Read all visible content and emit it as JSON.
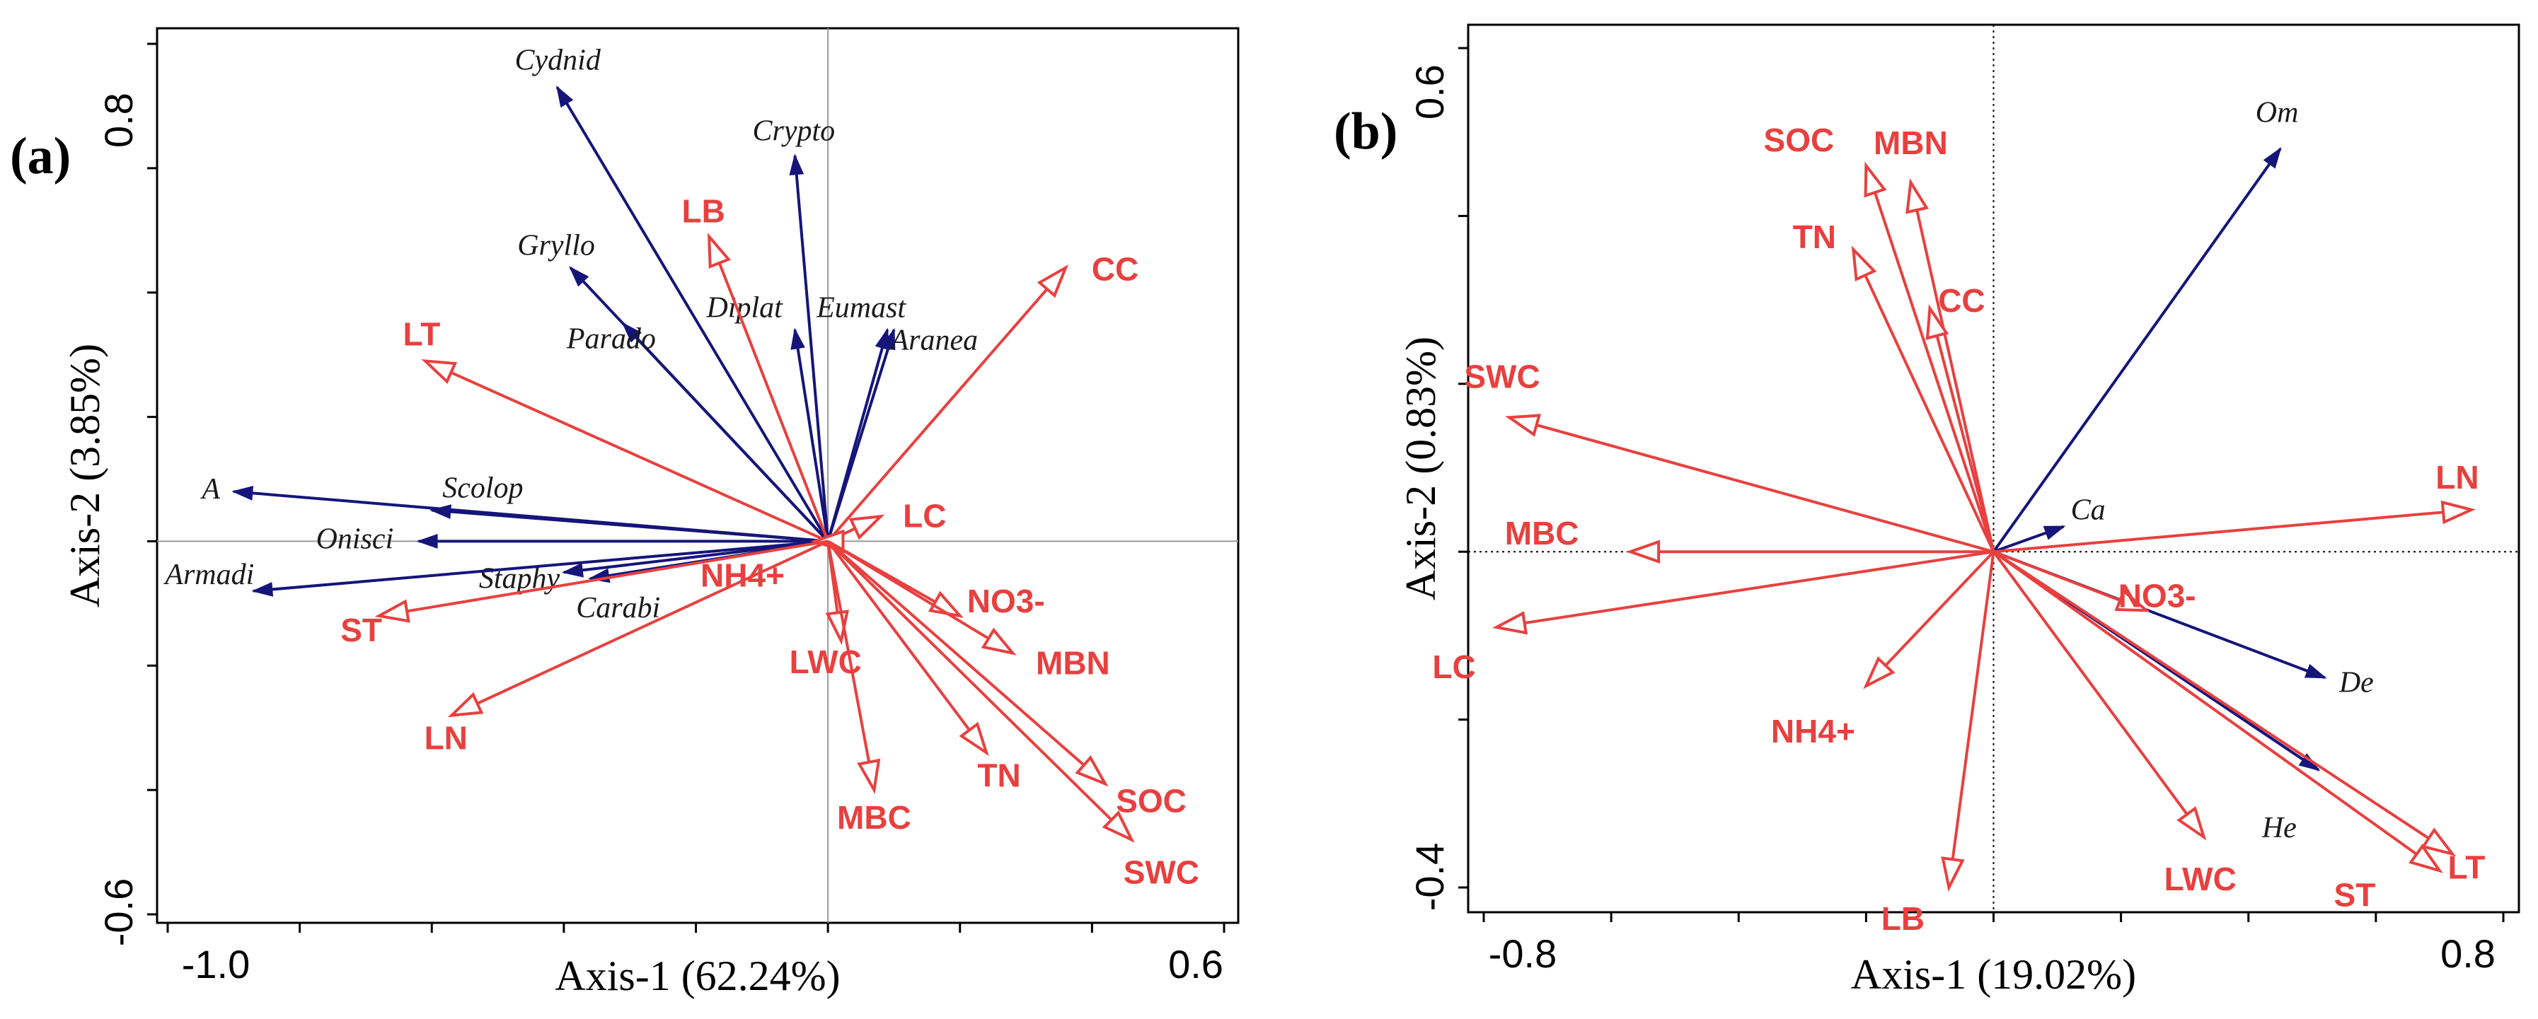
{
  "chart_data": [
    {
      "type": "biplot",
      "panel_label": "(a)",
      "xlabel": "Axis-1 (62.24%)",
      "ylabel": "Axis-2 (3.85%)",
      "xlim": [
        -1.0,
        0.6
      ],
      "ylim": [
        -0.6,
        0.8
      ],
      "x_tick_labels": [
        "-1.0",
        "0.6"
      ],
      "y_tick_labels": [
        "-0.6",
        "0.8"
      ],
      "reference_lines": "solid",
      "environmental_vectors": [
        {
          "name": "LB",
          "x": -0.18,
          "y": 0.49
        },
        {
          "name": "CC",
          "x": 0.36,
          "y": 0.44
        },
        {
          "name": "LT",
          "x": -0.61,
          "y": 0.29
        },
        {
          "name": "LC",
          "x": 0.08,
          "y": 0.04
        },
        {
          "name": "NH4+",
          "x": -0.02,
          "y": 0.0
        },
        {
          "name": "LWC",
          "x": 0.02,
          "y": -0.16
        },
        {
          "name": "NO3-",
          "x": 0.2,
          "y": -0.12
        },
        {
          "name": "MBN",
          "x": 0.28,
          "y": -0.18
        },
        {
          "name": "ST",
          "x": -0.68,
          "y": -0.12
        },
        {
          "name": "LN",
          "x": -0.57,
          "y": -0.28
        },
        {
          "name": "MBC",
          "x": 0.07,
          "y": -0.4
        },
        {
          "name": "TN",
          "x": 0.24,
          "y": -0.34
        },
        {
          "name": "SOC",
          "x": 0.42,
          "y": -0.39
        },
        {
          "name": "SWC",
          "x": 0.46,
          "y": -0.48
        }
      ],
      "species_vectors": [
        {
          "name": "Cydnid",
          "x": -0.41,
          "y": 0.73
        },
        {
          "name": "Crypto",
          "x": -0.05,
          "y": 0.62
        },
        {
          "name": "Gryllo",
          "x": -0.39,
          "y": 0.44
        },
        {
          "name": "Parado",
          "x": -0.31,
          "y": 0.35
        },
        {
          "name": "Diplat",
          "x": -0.05,
          "y": 0.34
        },
        {
          "name": "Eumast",
          "x": 0.09,
          "y": 0.34
        },
        {
          "name": "Aranea",
          "x": 0.1,
          "y": 0.34
        },
        {
          "name": "A",
          "x": -0.9,
          "y": 0.08
        },
        {
          "name": "Scolop",
          "x": -0.6,
          "y": 0.05
        },
        {
          "name": "Onisci",
          "x": -0.62,
          "y": 0.0
        },
        {
          "name": "Staphy",
          "x": -0.4,
          "y": -0.05
        },
        {
          "name": "Carabi",
          "x": -0.36,
          "y": -0.06
        },
        {
          "name": "Armadi",
          "x": -0.87,
          "y": -0.08
        }
      ]
    },
    {
      "type": "biplot",
      "panel_label": "(b)",
      "xlabel": "Axis-1 (19.02%)",
      "ylabel": "Axis-2 (0.83%)",
      "xlim": [
        -0.8,
        0.8
      ],
      "ylim": [
        -0.4,
        0.6
      ],
      "x_tick_labels": [
        "-0.8",
        "0.8"
      ],
      "y_tick_labels": [
        "-0.4",
        "0.6"
      ],
      "reference_lines": "dotted",
      "environmental_vectors": [
        {
          "name": "SOC",
          "x": -0.2,
          "y": 0.46
        },
        {
          "name": "MBN",
          "x": -0.13,
          "y": 0.44
        },
        {
          "name": "TN",
          "x": -0.22,
          "y": 0.36
        },
        {
          "name": "CC",
          "x": -0.1,
          "y": 0.29
        },
        {
          "name": "SWC",
          "x": -0.76,
          "y": 0.16
        },
        {
          "name": "MBC",
          "x": -0.57,
          "y": 0.0
        },
        {
          "name": "LC",
          "x": -0.78,
          "y": -0.09
        },
        {
          "name": "NH4+",
          "x": -0.2,
          "y": -0.16
        },
        {
          "name": "LB",
          "x": -0.07,
          "y": -0.4
        },
        {
          "name": "NO3-",
          "x": 0.24,
          "y": -0.07
        },
        {
          "name": "LWC",
          "x": 0.33,
          "y": -0.34
        },
        {
          "name": "ST",
          "x": 0.7,
          "y": -0.38
        },
        {
          "name": "LT",
          "x": 0.72,
          "y": -0.36
        },
        {
          "name": "LN",
          "x": 0.75,
          "y": 0.05
        }
      ],
      "species_vectors": [
        {
          "name": "Om",
          "x": 0.45,
          "y": 0.48
        },
        {
          "name": "Ca",
          "x": 0.11,
          "y": 0.03
        },
        {
          "name": "De",
          "x": 0.52,
          "y": -0.15
        },
        {
          "name": "He",
          "x": 0.51,
          "y": -0.26
        }
      ]
    }
  ]
}
